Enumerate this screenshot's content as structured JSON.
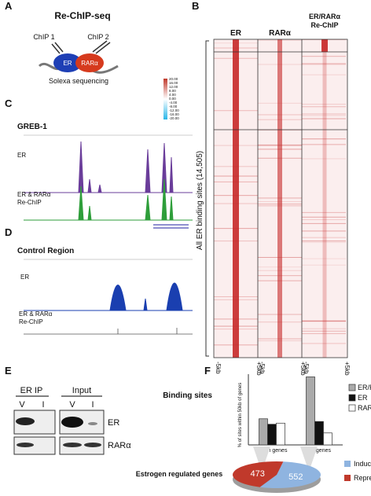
{
  "panel_a": {
    "label": "A",
    "title": "Re-ChIP-seq",
    "chip1": "ChIP 1",
    "chip2": "ChIP 2",
    "protein1": "ER",
    "protein2": "RARα",
    "caption": "Solexa sequencing"
  },
  "panel_b": {
    "label": "B",
    "columns": [
      [
        "ER"
      ],
      [
        "RARα"
      ],
      [
        "ER/RARα",
        "Re-ChIP"
      ]
    ],
    "row_label": "All ER binding sites (14,505)",
    "x_labels": [
      [
        "-5kb",
        "+5kb"
      ],
      [
        "-5kb",
        "+5kb"
      ],
      [
        "-5kb",
        "+5kb"
      ]
    ],
    "scale_labels": [
      "20.00",
      "16.00",
      "12.00",
      "8.00",
      "4.00",
      "0.00",
      "-4.00",
      "-8.00",
      "-12.00",
      "-16.00",
      "-20.00"
    ]
  },
  "panel_c": {
    "label": "C",
    "region": "GREB-1",
    "tracks": [
      [
        "ER"
      ],
      [
        "ER & RARα",
        "Re-ChIP"
      ]
    ]
  },
  "panel_d": {
    "label": "D",
    "region": "Control Region",
    "tracks": [
      [
        "ER"
      ],
      [
        "ER & RARα",
        "Re-ChIP"
      ]
    ]
  },
  "panel_e": {
    "label": "E",
    "groups": [
      "ER IP",
      "Input"
    ],
    "lanes": [
      "V",
      "I",
      "V",
      "I"
    ],
    "blots": [
      "ER",
      "RARα"
    ]
  },
  "panel_f": {
    "label": "F",
    "bar_chart": {
      "type": "bar",
      "title": "Binding sites",
      "y_label": "% of sites within 50kb of genes",
      "categories": [
        "Down genes",
        "Up genes"
      ],
      "ylim": [
        0,
        13
      ],
      "series": [
        {
          "name": "ER/RARα",
          "color": "#aaaaaa",
          "values": [
            4.8,
            12.5
          ]
        },
        {
          "name": "ER",
          "color": "#111111",
          "values": [
            3.8,
            4.3
          ]
        },
        {
          "name": "RARα",
          "color": "#ffffff",
          "values": [
            4.0,
            2.2
          ]
        }
      ]
    },
    "pie_chart": {
      "type": "pie",
      "title": "Estrogen regulated genes",
      "slices": [
        {
          "name": "Induced genes",
          "color": "#8fb4e0",
          "value": 552
        },
        {
          "name": "Repressed genes",
          "color": "#c0392b",
          "value": 473
        }
      ]
    }
  }
}
